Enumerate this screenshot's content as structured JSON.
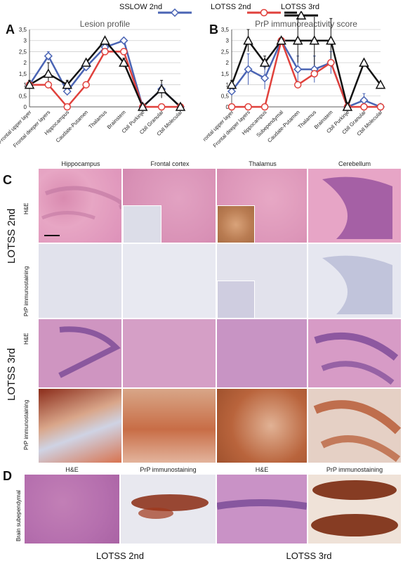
{
  "legend": {
    "sslow2": "SSLOW 2nd",
    "lotss2": "LOTSS 2nd",
    "lotss3": "LOTSS 3rd"
  },
  "colors": {
    "sslow2": "#4a64b4",
    "lotss2": "#e0413c",
    "lotss3": "#111111"
  },
  "panels": {
    "A": "A",
    "B": "B",
    "C": "C",
    "D": "D"
  },
  "chart_data": [
    {
      "type": "line",
      "title": "Lesion profile",
      "categories": [
        "Frontal upper layer",
        "Frontal deeper layers",
        "Hippocampus",
        "Caudate-Putamen",
        "Thalamus",
        "Brainstem",
        "Cbll Purkinje",
        "Cbll Granular",
        "Cbll Molecular"
      ],
      "yticks": [
        "0",
        "0,5",
        "1",
        "1,5",
        "2",
        "2,5",
        "3",
        "3,5"
      ],
      "ylim": [
        0,
        3.5
      ],
      "grid": true,
      "series": [
        {
          "key": "sslow2",
          "name": "SSLOW 2nd",
          "marker": "diamond",
          "values": [
            1.0,
            2.3,
            0.7,
            1.8,
            2.7,
            3.0,
            0,
            0.8,
            0
          ],
          "err": [
            0.15,
            0.2,
            0.15,
            0.1,
            0.1,
            0.05,
            0,
            0.2,
            0
          ]
        },
        {
          "key": "lotss2",
          "name": "LOTSS 2nd",
          "marker": "circle",
          "values": [
            1.0,
            1.0,
            0,
            1.0,
            2.5,
            2.5,
            0,
            0,
            0
          ],
          "err": [
            0,
            0,
            0,
            0,
            0,
            0,
            0,
            0,
            0
          ]
        },
        {
          "key": "lotss3",
          "name": "LOTSS 3rd",
          "marker": "triangle",
          "values": [
            1.0,
            1.5,
            1.0,
            2.0,
            3.0,
            2.0,
            0,
            0.8,
            0
          ],
          "err": [
            0.2,
            0.5,
            0.2,
            0.1,
            0.1,
            0.2,
            0,
            0.4,
            0
          ]
        }
      ]
    },
    {
      "type": "line",
      "title": "PrP immunoreactivity score",
      "categories": [
        "Frontal upper layer",
        "Frontal deeper layers",
        "Hippocampus",
        "Subependymal",
        "Caudate-Putamen",
        "Thalamus",
        "Brainstem",
        "Cbll Purkinje",
        "Cbll Granular",
        "Cbll Molecular"
      ],
      "yticks": [
        "0",
        "0,5",
        "1",
        "1,5",
        "2",
        "2,5",
        "3",
        "3,5"
      ],
      "ylim": [
        0,
        3.5
      ],
      "grid": true,
      "series": [
        {
          "key": "sslow2",
          "name": "SSLOW 2nd",
          "marker": "diamond",
          "values": [
            0.7,
            1.7,
            1.3,
            3.0,
            1.7,
            1.7,
            2.0,
            0,
            0.3,
            0
          ],
          "err": [
            0.2,
            0.7,
            0.5,
            0,
            0.6,
            0.6,
            0.5,
            0,
            0.3,
            0
          ]
        },
        {
          "key": "lotss2",
          "name": "LOTSS 2nd",
          "marker": "circle",
          "values": [
            0,
            0,
            0,
            3.0,
            1.0,
            1.5,
            2.0,
            0,
            0,
            0
          ],
          "err": [
            0,
            0,
            0,
            0,
            0,
            0,
            0,
            0,
            0,
            0
          ]
        },
        {
          "key": "lotss3",
          "name": "LOTSS 3rd",
          "marker": "triangle",
          "values": [
            1.0,
            3.0,
            2.0,
            3.0,
            3.0,
            3.0,
            3.0,
            0,
            2.0,
            1.0
          ],
          "err": [
            0.2,
            0.5,
            0.3,
            0,
            1.0,
            1.2,
            1.0,
            0,
            0,
            0
          ]
        }
      ]
    }
  ],
  "sectionC": {
    "columns": [
      "Hippocampus",
      "Frontal cortex",
      "Thalamus",
      "Cerebellum"
    ],
    "rows": [
      "H&E",
      "PrP immunostaining",
      "H&E",
      "PrP immunostaining"
    ],
    "groups": [
      "LOTSS 2nd",
      "LOTSS 3rd"
    ]
  },
  "sectionD": {
    "columns": [
      "H&E",
      "PrP immunostaining",
      "H&E",
      "PrP immunostaining"
    ],
    "rowLabel": "Brain subependymal",
    "groups": [
      "LOTSS 2nd",
      "LOTSS 3rd"
    ]
  }
}
